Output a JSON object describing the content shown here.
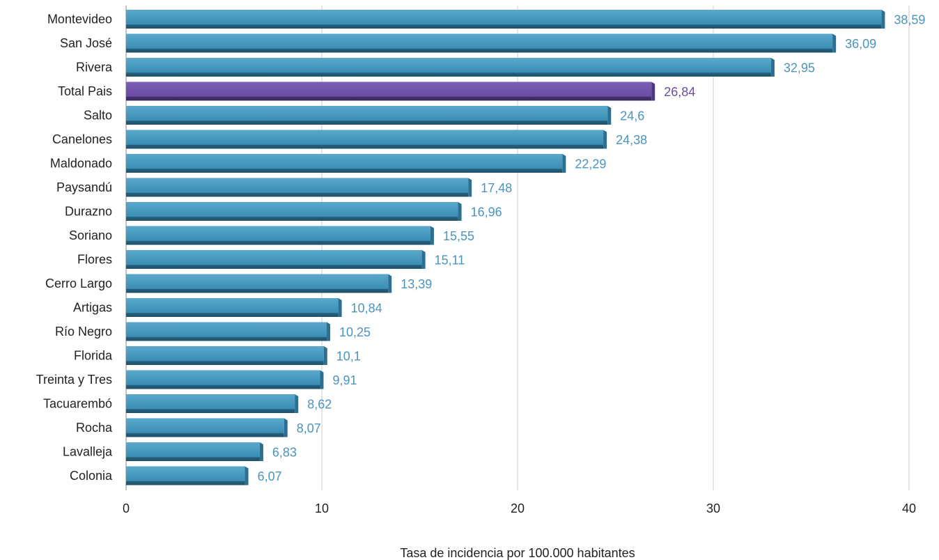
{
  "chart_data": {
    "type": "bar",
    "orientation": "horizontal",
    "categories": [
      "Montevideo",
      "San José",
      "Rivera",
      "Total Pais",
      "Salto",
      "Canelones",
      "Maldonado",
      "Paysandú",
      "Durazno",
      "Soriano",
      "Flores",
      "Cerro Largo",
      "Artigas",
      "Río Negro",
      "Florida",
      "Treinta y Tres",
      "Tacuarembó",
      "Rocha",
      "Lavalleja",
      "Colonia"
    ],
    "values": [
      38.59,
      36.09,
      32.95,
      26.84,
      24.6,
      24.38,
      22.29,
      17.48,
      16.96,
      15.55,
      15.11,
      13.39,
      10.84,
      10.25,
      10.1,
      9.91,
      8.62,
      8.07,
      6.83,
      6.07
    ],
    "value_labels": [
      "38,59",
      "36,09",
      "32,95",
      "26,84",
      "24,6",
      "24,38",
      "22,29",
      "17,48",
      "16,96",
      "15,55",
      "15,11",
      "13,39",
      "10,84",
      "10,25",
      "10,1",
      "9,91",
      "8,62",
      "8,07",
      "6,83",
      "6,07"
    ],
    "highlight_category": "Total Pais",
    "xlabel": "Tasa de incidencia por 100.000 habitantes",
    "xlim": [
      0,
      40
    ],
    "xticks": [
      0,
      10,
      20,
      30,
      40
    ],
    "xtick_labels": [
      "0",
      "10",
      "20",
      "30",
      "40"
    ],
    "grid": true,
    "legend": "none",
    "colors": {
      "bar": "#3a8db5",
      "bar_highlight": "#6a4ba3",
      "value_label": "#4a94bd",
      "value_label_highlight": "#6a4ba3",
      "grid": "#cccccc"
    }
  }
}
